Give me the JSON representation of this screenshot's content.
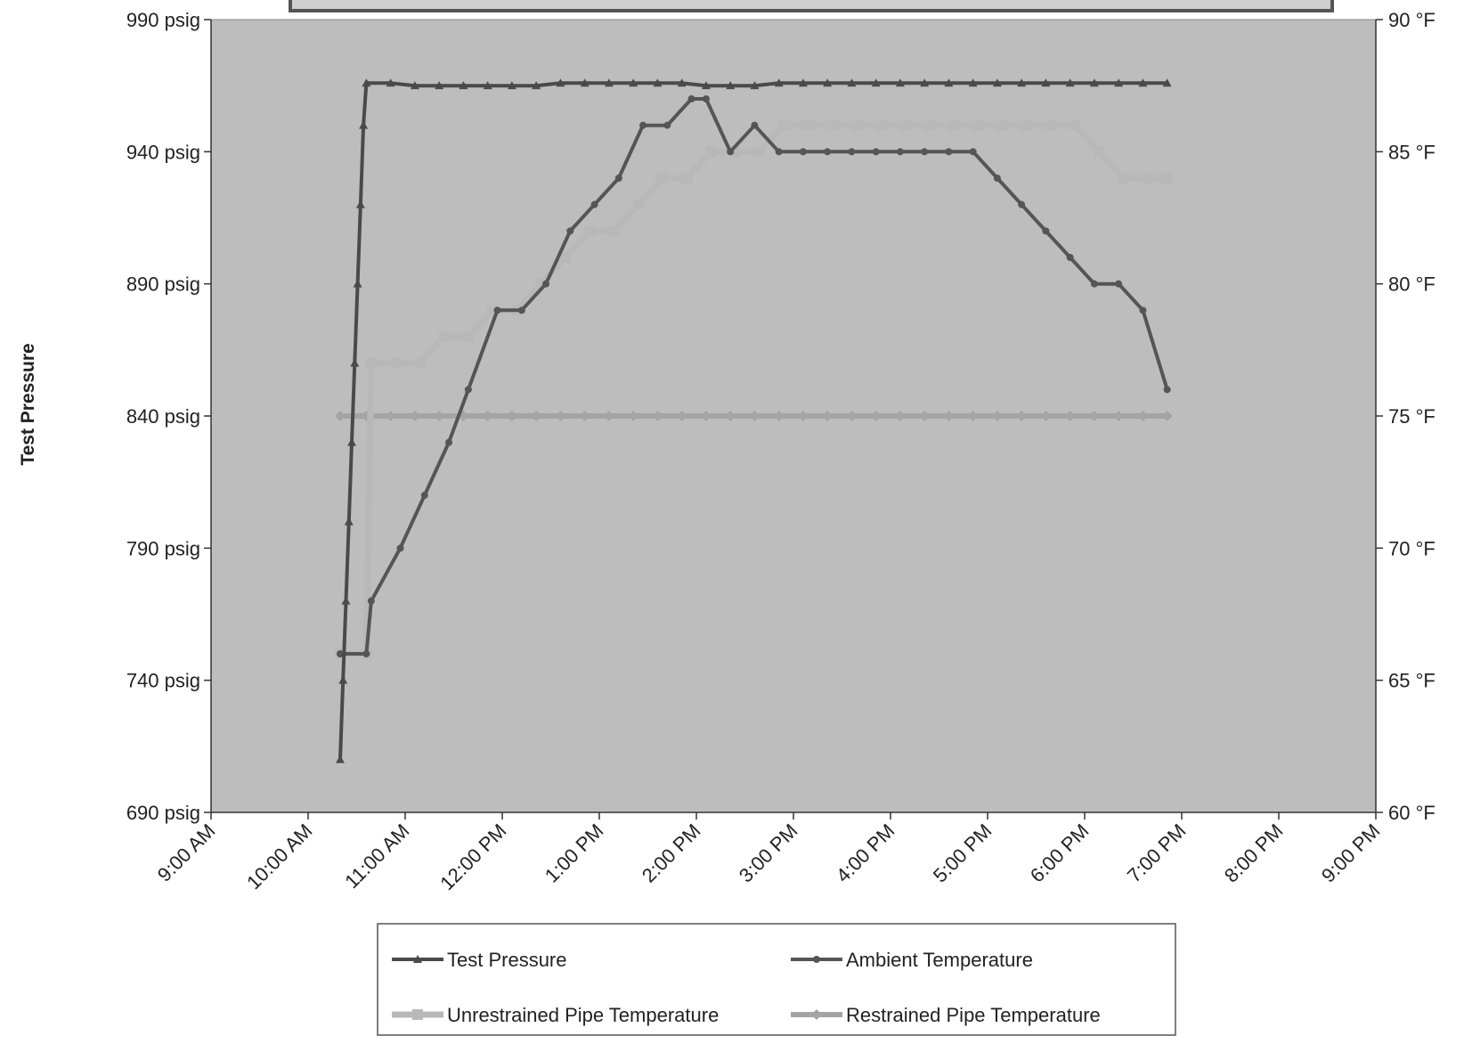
{
  "chart_data": {
    "type": "line",
    "ylabel_left": "Test Pressure",
    "y_left": {
      "min": 690,
      "max": 990,
      "ticks": [
        690,
        740,
        790,
        840,
        890,
        940,
        990
      ],
      "unit": "psig"
    },
    "y_right": {
      "min": 60,
      "max": 90,
      "ticks": [
        60,
        65,
        70,
        75,
        80,
        85,
        90
      ],
      "unit": "°F"
    },
    "y_left_tick_labels": [
      "690 psig",
      "740 psig",
      "790 psig",
      "840 psig",
      "890 psig",
      "940 psig",
      "990 psig"
    ],
    "y_right_tick_labels": [
      "60 °F",
      "65 °F",
      "70 °F",
      "75 °F",
      "80 °F",
      "85 °F",
      "90 °F"
    ],
    "x_tick_labels": [
      "9:00 AM",
      "10:00 AM",
      "11:00 AM",
      "12:00 PM",
      "1:00 PM",
      "2:00 PM",
      "3:00 PM",
      "4:00 PM",
      "5:00 PM",
      "6:00 PM",
      "7:00 PM",
      "8:00 PM",
      "9:00 PM"
    ],
    "x_range_hours": [
      9,
      21
    ],
    "grid": false,
    "legend_position": "bottom",
    "series": [
      {
        "name": "Test Pressure",
        "axis": "left",
        "color": "#4a4a4a",
        "marker": "triangle",
        "x": [
          10.33,
          10.36,
          10.39,
          10.42,
          10.45,
          10.48,
          10.51,
          10.54,
          10.57,
          10.6,
          10.85,
          11.1,
          11.35,
          11.6,
          11.85,
          12.1,
          12.35,
          12.6,
          12.85,
          13.1,
          13.35,
          13.6,
          13.85,
          14.1,
          14.35,
          14.6,
          14.85,
          15.1,
          15.35,
          15.6,
          15.85,
          16.1,
          16.35,
          16.6,
          16.85,
          17.1,
          17.35,
          17.6,
          17.85,
          18.1,
          18.35,
          18.6,
          18.85
        ],
        "y": [
          710,
          740,
          770,
          800,
          830,
          860,
          890,
          920,
          950,
          966,
          966,
          965,
          965,
          965,
          965,
          965,
          965,
          966,
          966,
          966,
          966,
          966,
          966,
          965,
          965,
          965,
          966,
          966,
          966,
          966,
          966,
          966,
          966,
          966,
          966,
          966,
          966,
          966,
          966,
          966,
          966,
          966,
          966
        ]
      },
      {
        "name": "Ambient Temperature",
        "axis": "right",
        "color": "#555555",
        "marker": "circle",
        "x": [
          10.33,
          10.6,
          10.65,
          10.95,
          11.2,
          11.45,
          11.65,
          11.95,
          12.2,
          12.45,
          12.7,
          12.95,
          13.2,
          13.45,
          13.7,
          13.95,
          14.1,
          14.35,
          14.6,
          14.85,
          15.1,
          15.35,
          15.6,
          15.85,
          16.1,
          16.35,
          16.6,
          16.85,
          17.1,
          17.35,
          17.6,
          17.85,
          18.1,
          18.35,
          18.6,
          18.85
        ],
        "y": [
          66,
          66,
          68,
          70,
          72,
          74,
          76,
          79,
          79,
          80,
          82,
          83,
          84,
          86,
          86,
          87,
          87,
          85,
          86,
          85,
          85,
          85,
          85,
          85,
          85,
          85,
          85,
          85,
          84,
          83,
          82,
          81,
          80,
          80,
          79,
          76
        ]
      },
      {
        "name": "Unrestrained Pipe Temperature",
        "axis": "right",
        "color": "#b8b8b8",
        "marker": "square",
        "x": [
          10.33,
          10.6,
          10.65,
          10.9,
          11.15,
          11.4,
          11.65,
          11.9,
          12.15,
          12.4,
          12.65,
          12.9,
          13.15,
          13.4,
          13.65,
          13.9,
          14.15,
          14.4,
          14.65,
          14.9,
          15.15,
          15.4,
          15.65,
          15.9,
          16.15,
          16.4,
          16.65,
          16.9,
          17.15,
          17.4,
          17.65,
          17.9,
          18.15,
          18.4,
          18.65,
          18.85
        ],
        "y": [
          66,
          66,
          77,
          77,
          77,
          78,
          78,
          79,
          79,
          80,
          81,
          82,
          82,
          83,
          84,
          84,
          85,
          85,
          85,
          86,
          86,
          86,
          86,
          86,
          86,
          86,
          86,
          86,
          86,
          86,
          86,
          86,
          85,
          84,
          84,
          84
        ]
      },
      {
        "name": "Restrained Pipe Temperature",
        "axis": "right",
        "color": "#a4a4a4",
        "marker": "diamond",
        "x": [
          10.33,
          10.6,
          10.85,
          11.1,
          11.35,
          11.6,
          11.85,
          12.1,
          12.35,
          12.6,
          12.85,
          13.1,
          13.35,
          13.6,
          13.85,
          14.1,
          14.35,
          14.6,
          14.85,
          15.1,
          15.35,
          15.6,
          15.85,
          16.1,
          16.35,
          16.6,
          16.85,
          17.1,
          17.35,
          17.6,
          17.85,
          18.1,
          18.35,
          18.6,
          18.85
        ],
        "y": [
          75,
          75,
          75,
          75,
          75,
          75,
          75,
          75,
          75,
          75,
          75,
          75,
          75,
          75,
          75,
          75,
          75,
          75,
          75,
          75,
          75,
          75,
          75,
          75,
          75,
          75,
          75,
          75,
          75,
          75,
          75,
          75,
          75,
          75,
          75
        ]
      }
    ]
  },
  "colors": {
    "plot_background": "#bdbdbd",
    "page_background": "#ffffff",
    "axis_line": "#333333"
  }
}
